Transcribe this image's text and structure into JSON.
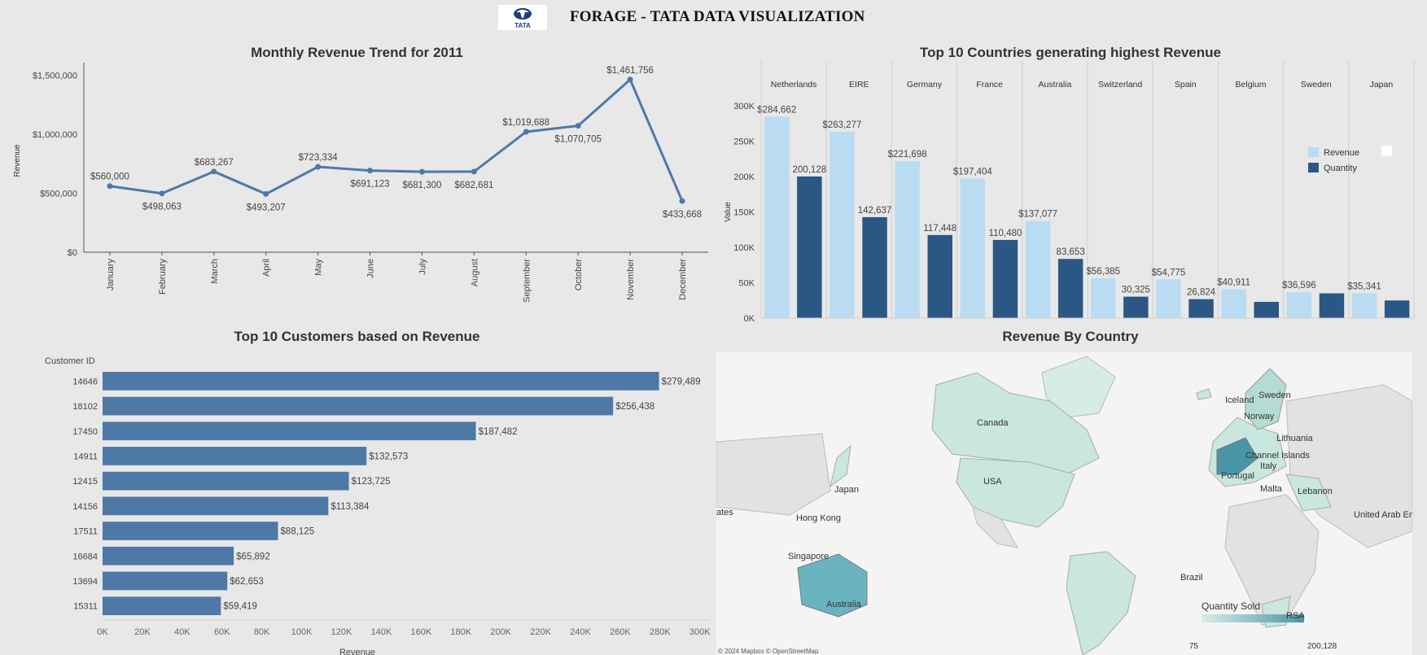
{
  "header": {
    "title": "FORAGE - TATA DATA VISUALIZATION",
    "logo_text": "TATA"
  },
  "colors": {
    "line": "#4e79a7",
    "revenue": "#b9dcf2",
    "quantity": "#2a5783",
    "customer_bar": "#4e79a7",
    "map_low": "#d8ede8",
    "map_high": "#4a95a8"
  },
  "chart_data": [
    {
      "type": "line",
      "title": "Monthly Revenue Trend for 2011",
      "xlabel": "",
      "ylabel": "Revenue",
      "categories": [
        "January",
        "February",
        "March",
        "April",
        "May",
        "June",
        "July",
        "August",
        "September",
        "October",
        "November",
        "December"
      ],
      "values": [
        560000,
        498063,
        683267,
        493207,
        723334,
        691123,
        681300,
        682681,
        1019688,
        1070705,
        1461756,
        433668
      ],
      "data_labels": [
        "$560,000",
        "$498,063",
        "$683,267",
        "$493,207",
        "$723,334",
        "$691,123",
        "$681,300",
        "$682,681",
        "$1,019,688",
        "$1,070,705",
        "$1,461,756",
        "$433,668"
      ],
      "yticks": [
        0,
        500000,
        1000000,
        1500000
      ],
      "ytick_labels": [
        "$0",
        "$500,000",
        "$1,000,000",
        "$1,500,000"
      ],
      "ylim": [
        0,
        1550000
      ],
      "grid": false
    },
    {
      "type": "bar",
      "title": "Top 10 Countries generating highest Revenue",
      "ylabel": "Value",
      "categories": [
        "Netherlands",
        "EIRE",
        "Germany",
        "France",
        "Australia",
        "Switzerland",
        "Spain",
        "Belgium",
        "Sweden",
        "Japan"
      ],
      "series": [
        {
          "name": "Revenue",
          "values": [
            284662,
            263277,
            221698,
            197404,
            137077,
            56385,
            54775,
            40911,
            36596,
            35341
          ],
          "labels": [
            "$284,662",
            "$263,277",
            "$221,698",
            "$197,404",
            "$137,077",
            "$56,385",
            "$54,775",
            "$40,911",
            "$36,596",
            "$35,341"
          ]
        },
        {
          "name": "Quantity",
          "values": [
            200128,
            142637,
            117448,
            110480,
            83653,
            30325,
            26824,
            23000,
            35000,
            25000
          ],
          "labels": [
            "200,128",
            "142,637",
            "117,448",
            "110,480",
            "83,653",
            "30,325",
            "26,824",
            "",
            "",
            ""
          ]
        }
      ],
      "yticks": [
        0,
        50000,
        100000,
        150000,
        200000,
        250000,
        300000
      ],
      "ytick_labels": [
        "0K",
        "50K",
        "100K",
        "150K",
        "200K",
        "250K",
        "300K"
      ],
      "ylim": [
        0,
        300000
      ],
      "legend": "right"
    },
    {
      "type": "bar",
      "orientation": "horizontal",
      "title": "Top 10 Customers based on Revenue",
      "ylabel": "Customer ID",
      "xlabel": "Revenue",
      "categories": [
        "14646",
        "18102",
        "17450",
        "14911",
        "12415",
        "14156",
        "17511",
        "16684",
        "13694",
        "15311"
      ],
      "values": [
        279489,
        256438,
        187482,
        132573,
        123725,
        113384,
        88125,
        65892,
        62653,
        59419
      ],
      "data_labels": [
        "$279,489",
        "$256,438",
        "$187,482",
        "$132,573",
        "$123,725",
        "$113,384",
        "$88,125",
        "$65,892",
        "$62,653",
        "$59,419"
      ],
      "xticks": [
        0,
        20000,
        40000,
        60000,
        80000,
        100000,
        120000,
        140000,
        160000,
        180000,
        200000,
        220000,
        240000,
        260000,
        280000,
        300000
      ],
      "xtick_labels": [
        "0K",
        "20K",
        "40K",
        "60K",
        "80K",
        "100K",
        "120K",
        "140K",
        "160K",
        "180K",
        "200K",
        "220K",
        "240K",
        "260K",
        "280K",
        "300K"
      ],
      "xlim": [
        0,
        305000
      ]
    }
  ],
  "map": {
    "title": "Revenue By Country",
    "labels": [
      "Canada",
      "USA",
      "Brazil",
      "Australia",
      "Japan",
      "Hong Kong",
      "Singapore",
      "Iceland",
      "Sweden",
      "Norway",
      "Lithuania",
      "Channel Islands",
      "Italy",
      "Portugal",
      "Malta",
      "Lebanon",
      "United Arab Emir",
      "RSA",
      "ates"
    ],
    "legend_title": "Quantity Sold",
    "legend_min": "75",
    "legend_max": "200,128",
    "credit": "© 2024 Mapbox © OpenStreetMap"
  }
}
